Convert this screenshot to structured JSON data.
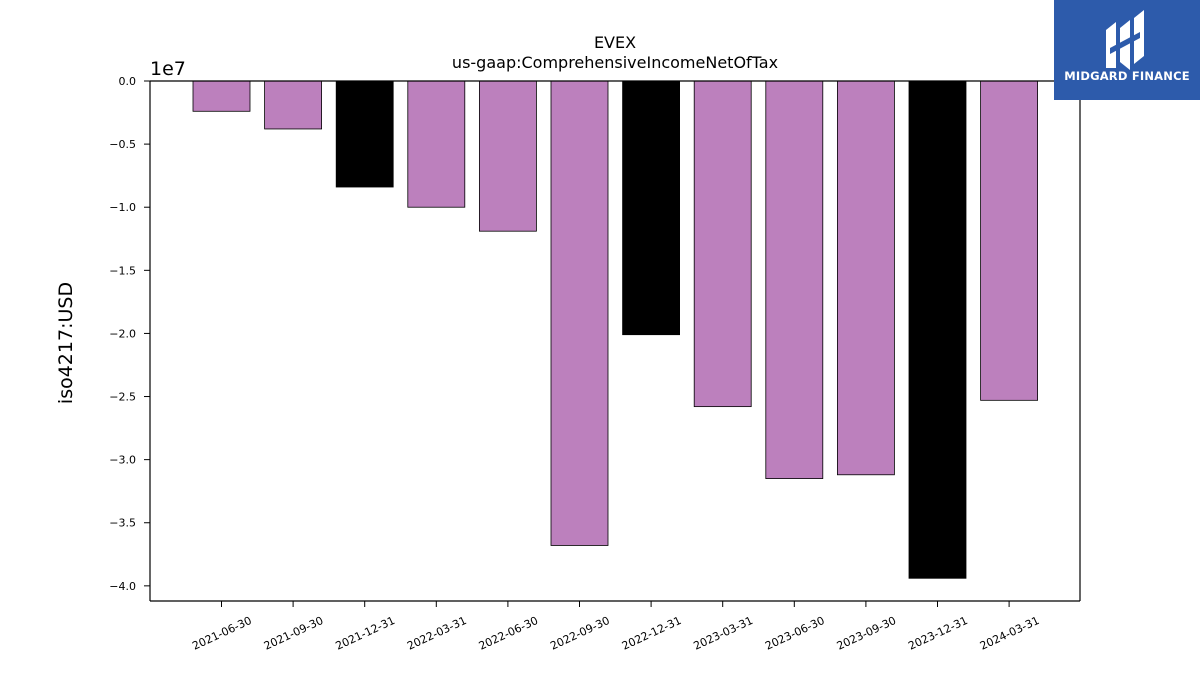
{
  "branding": {
    "name": "MIDGARD FINANCE",
    "bg_color": "#2d5bab"
  },
  "chart_data": {
    "type": "bar",
    "title": "EVEX",
    "subtitle": "us-gaap:ComprehensiveIncomeNetOfTax",
    "xlabel": "",
    "ylabel": "iso4217:USD",
    "offset_label": "1e7",
    "ylim": [
      -4.12,
      0
    ],
    "yticks": [
      0.0,
      -0.5,
      -1.0,
      -1.5,
      -2.0,
      -2.5,
      -3.0,
      -3.5,
      -4.0
    ],
    "categories": [
      "2021-06-30",
      "2021-09-30",
      "2021-12-31",
      "2022-03-31",
      "2022-06-30",
      "2022-09-30",
      "2022-12-31",
      "2023-03-31",
      "2023-06-30",
      "2023-09-30",
      "2023-12-31",
      "2024-03-31"
    ],
    "values": [
      -0.24,
      -0.38,
      -0.84,
      -1.0,
      -1.19,
      -3.68,
      -2.01,
      -2.58,
      -3.15,
      -3.12,
      -3.94,
      -2.53
    ],
    "bar_colors": [
      "#bc80bd",
      "#bc80bd",
      "#000000",
      "#bc80bd",
      "#bc80bd",
      "#bc80bd",
      "#000000",
      "#bc80bd",
      "#bc80bd",
      "#bc80bd",
      "#000000",
      "#bc80bd"
    ],
    "grid": false
  }
}
